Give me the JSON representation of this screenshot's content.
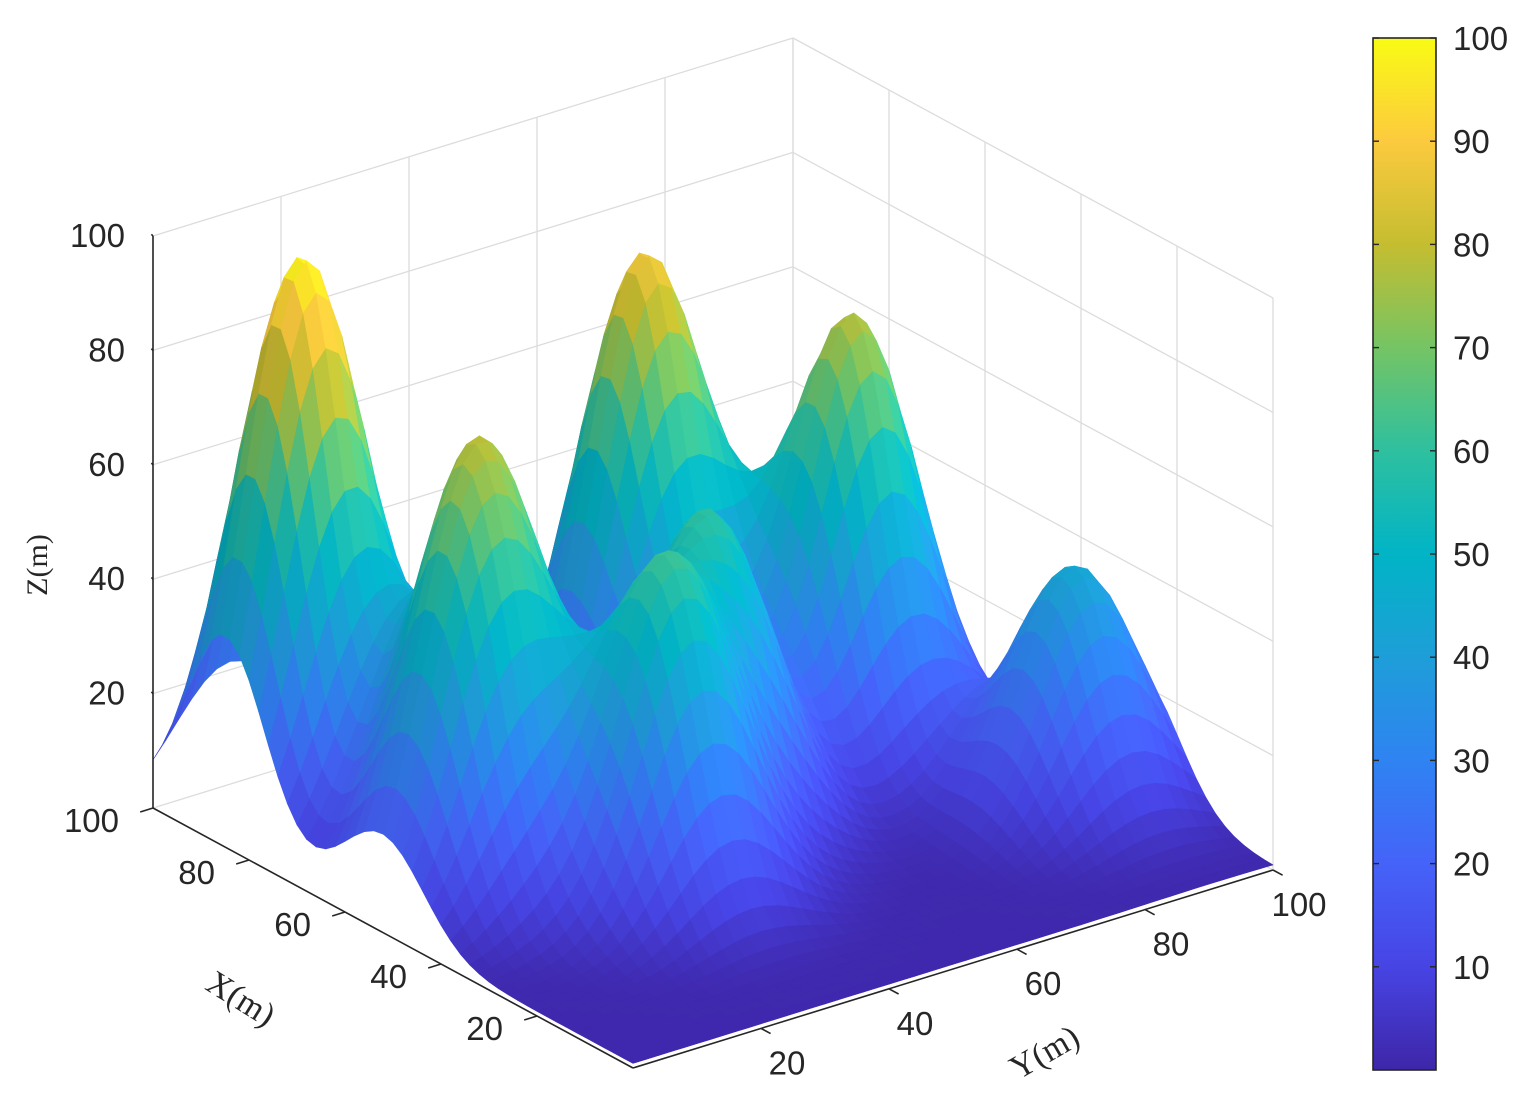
{
  "chart_data": {
    "type": "surface",
    "title": "",
    "xlabel": "X(m)",
    "ylabel": "Y(m)",
    "zlabel": "Z(m)",
    "xlim": [
      0,
      100
    ],
    "ylim": [
      0,
      100
    ],
    "zlim": [
      0,
      100
    ],
    "x_ticks": [
      "20",
      "40",
      "60",
      "80",
      "100"
    ],
    "y_ticks": [
      "20",
      "40",
      "60",
      "80",
      "100"
    ],
    "z_ticks": [
      "20",
      "40",
      "60",
      "80",
      "100"
    ],
    "grid": true,
    "colormap": "parula",
    "colorbar": {
      "range": [
        0,
        100
      ],
      "ticks": [
        "10",
        "20",
        "30",
        "40",
        "50",
        "60",
        "70",
        "80",
        "90",
        "100"
      ],
      "colors": [
        "#3e26a8",
        "#4744e4",
        "#4563f9",
        "#2f83f2",
        "#1e9ed8",
        "#01b4c6",
        "#2ec09f",
        "#75c464",
        "#c5bd30",
        "#fcca3e",
        "#f9fb14"
      ]
    },
    "peaks": [
      {
        "x": 85,
        "y": 12,
        "height": 98
      },
      {
        "x": 52,
        "y": 14,
        "height": 62
      },
      {
        "x": 62,
        "y": 24,
        "height": 45
      },
      {
        "x": 35,
        "y": 32,
        "height": 57
      },
      {
        "x": 48,
        "y": 48,
        "height": 55
      },
      {
        "x": 75,
        "y": 58,
        "height": 87
      },
      {
        "x": 58,
        "y": 78,
        "height": 77
      },
      {
        "x": 28,
        "y": 90,
        "height": 43
      }
    ]
  }
}
